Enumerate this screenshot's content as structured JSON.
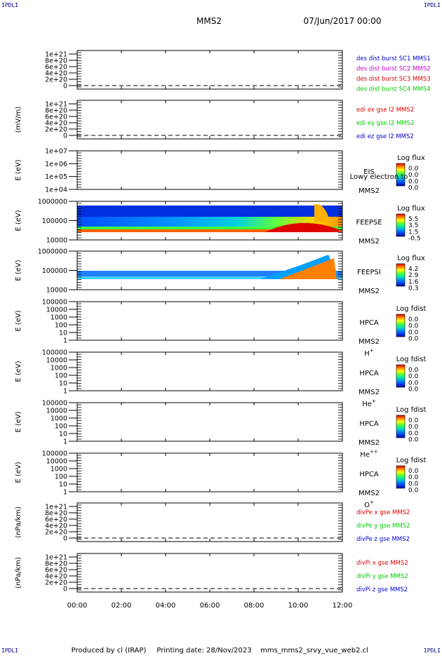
{
  "corners": {
    "tl": "IPDLI",
    "tr": "IPDLI",
    "bl": "IPDLI",
    "br": "IPDLI"
  },
  "header": {
    "spacecraft": "MMS2",
    "datetime": "07/Jun/2017 00:00"
  },
  "footer": {
    "produced_by": "Produced by cl (IRAP)",
    "printing_date": "Printing date: 28/Nov/2023",
    "file": "mms_mms2_srvy_vue_web2.cl"
  },
  "time_axis": [
    "00:00",
    "02:00",
    "04:00",
    "06:00",
    "08:00",
    "10:00",
    "12:00"
  ],
  "colors": {
    "blue": "#0000cc",
    "magenta": "#cc00cc",
    "red": "#dd0000",
    "green": "#00cc00"
  },
  "chart_data": [
    {
      "type": "line",
      "ylabel": "",
      "yticks": [
        "1e+21",
        "8e+20",
        "6e+20",
        "4e+20",
        "2e+20",
        "0"
      ],
      "zero_line": "dashed",
      "series": [
        {
          "name": "des dist burst SC1 MMS1",
          "color": "#0000cc"
        },
        {
          "name": "des dist burst SC2 MMS2",
          "color": "#cc00cc"
        },
        {
          "name": "des dist burst SC3 MMS3",
          "color": "#dd0000"
        },
        {
          "name": "des dist burst SC4 MMS4",
          "color": "#00cc00"
        }
      ]
    },
    {
      "type": "line",
      "ylabel": "(mV/m)",
      "yticks": [
        "1e+21",
        "8e+20",
        "6e+20",
        "4e+20",
        "2e+20",
        "0"
      ],
      "zero_line": "dashed",
      "series": [
        {
          "name": "edi ex gse l2 MMS2",
          "color": "#dd0000"
        },
        {
          "name": "edi ey gse l2 MMS2",
          "color": "#00cc00"
        },
        {
          "name": "edi ez gse l2 MMS2",
          "color": "#0000cc"
        }
      ]
    },
    {
      "type": "heatmap",
      "ylabel": "E (eV)",
      "yticks": [
        "1e+07",
        "1e+06",
        "1e+05",
        "1e+04"
      ],
      "instrument": [
        "EIS",
        "MMS2"
      ],
      "overlay_note": "Lowy electron to",
      "colorbar": {
        "title": "Log flux",
        "ticks": [
          "0.0",
          "0.0",
          "0.0",
          "0.0"
        ]
      }
    },
    {
      "type": "heatmap",
      "ylabel": "E (eV)",
      "yticks": [
        "1000000",
        "100000",
        "10000"
      ],
      "instrument": [
        "FEEPSE",
        "MMS2"
      ],
      "colorbar": {
        "title": "Log flux",
        "ticks": [
          "5.5",
          "3.5",
          "1.5",
          "-0.5"
        ]
      }
    },
    {
      "type": "heatmap",
      "ylabel": "E (eV)",
      "yticks": [
        "1000000",
        "100000",
        "10000"
      ],
      "instrument": [
        "FEEPSI",
        "MMS2"
      ],
      "colorbar": {
        "title": "Log flux",
        "ticks": [
          "4.2",
          "2.9",
          "1.6",
          "0.3"
        ]
      }
    },
    {
      "type": "heatmap",
      "ylabel": "E (eV)",
      "yticks": [
        "100000",
        "10000",
        "1000",
        "100",
        "10",
        "1"
      ],
      "instrument": [
        "HPCA",
        "MMS2",
        "H+"
      ],
      "colorbar": {
        "title": "Log fdist",
        "ticks": [
          "0.0",
          "0.0",
          "0.0",
          "0.0"
        ]
      }
    },
    {
      "type": "heatmap",
      "ylabel": "E (eV)",
      "yticks": [
        "100000",
        "10000",
        "1000",
        "100",
        "10",
        "1"
      ],
      "instrument": [
        "HPCA",
        "MMS2",
        "He+"
      ],
      "colorbar": {
        "title": "Log fdist",
        "ticks": [
          "0.0",
          "0.0",
          "0.0",
          "0.0"
        ]
      }
    },
    {
      "type": "heatmap",
      "ylabel": "E (eV)",
      "yticks": [
        "100000",
        "10000",
        "1000",
        "100",
        "10",
        "1"
      ],
      "instrument": [
        "HPCA",
        "MMS2",
        "He++"
      ],
      "colorbar": {
        "title": "Log fdist",
        "ticks": [
          "0.0",
          "0.0",
          "0.0",
          "0.0"
        ]
      }
    },
    {
      "type": "heatmap",
      "ylabel": "E (eV)",
      "yticks": [
        "100000",
        "10000",
        "1000",
        "100",
        "10",
        "1"
      ],
      "instrument": [
        "HPCA",
        "MMS2",
        "O+"
      ],
      "colorbar": {
        "title": "Log fdist",
        "ticks": [
          "0.0",
          "0.0",
          "0.0",
          "0.0"
        ]
      }
    },
    {
      "type": "line",
      "ylabel": "(nPa/km)",
      "yticks": [
        "1e+21",
        "8e+20",
        "6e+20",
        "4e+20",
        "2e+20",
        "0"
      ],
      "zero_line": "dashed",
      "series": [
        {
          "name": "divPe x gse MMS2",
          "color": "#dd0000"
        },
        {
          "name": "divPe y gse MMS2",
          "color": "#00cc00"
        },
        {
          "name": "divPe z gse MMS2",
          "color": "#0000cc"
        }
      ]
    },
    {
      "type": "line",
      "ylabel": "(nPa/km)",
      "yticks": [
        "1e+21",
        "8e+20",
        "6e+20",
        "4e+20",
        "2e+20",
        "0"
      ],
      "zero_line": "dashed",
      "series": [
        {
          "name": "divPi x gse MMS2",
          "color": "#dd0000"
        },
        {
          "name": "divPi y gse MMS2",
          "color": "#00cc00"
        },
        {
          "name": "divPi z gse MMS2",
          "color": "#0000cc"
        }
      ]
    }
  ]
}
